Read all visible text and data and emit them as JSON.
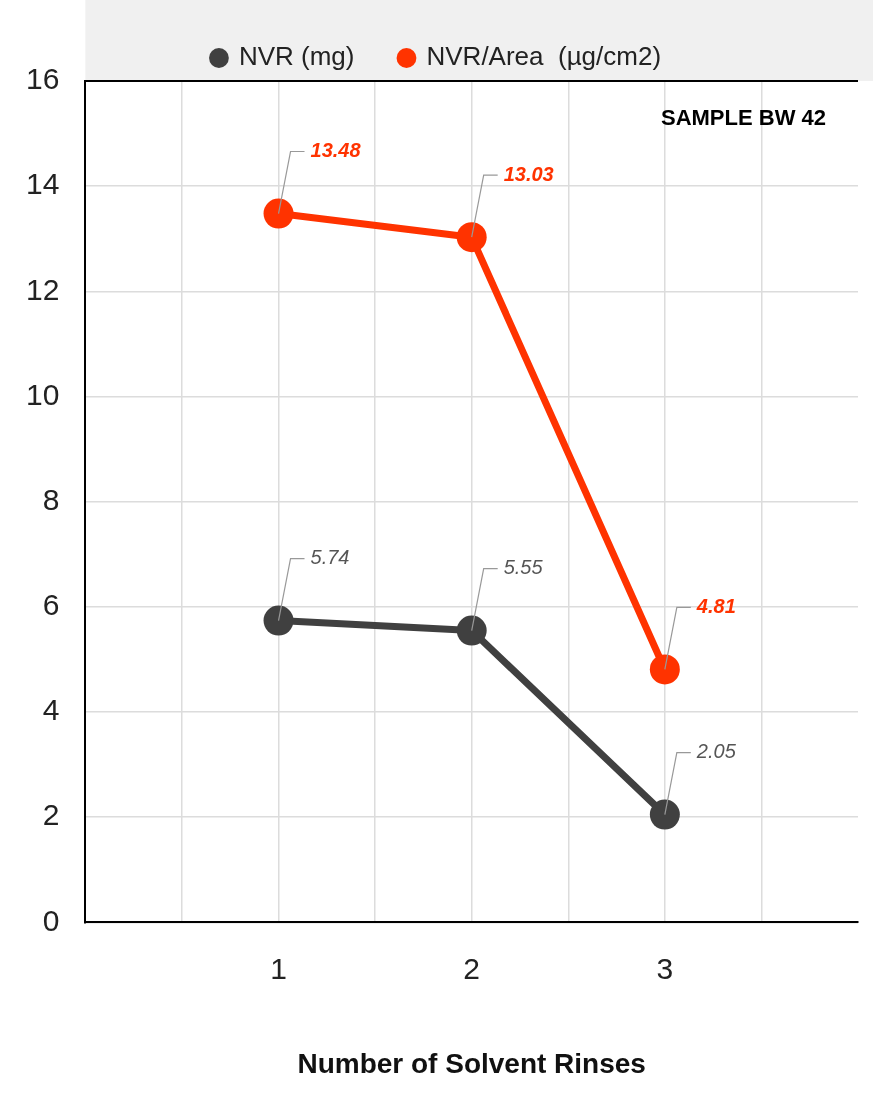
{
  "chart_data": {
    "type": "line",
    "xlabel": "Number of Solvent Rinses",
    "x": [
      1,
      2,
      3
    ],
    "series": [
      {
        "name": "NVR (mg)",
        "color": "#404040",
        "values": [
          5.74,
          5.55,
          2.05
        ]
      },
      {
        "name": "NVR/Area  (µg/cm2)",
        "color": "#ff3300",
        "values": [
          13.48,
          13.03,
          4.81
        ]
      }
    ],
    "xlim": [
      0,
      4
    ],
    "xticks": [
      {
        "value": 0.5,
        "label": null
      },
      1,
      {
        "value": 1.5,
        "label": null
      },
      2,
      {
        "value": 2.5,
        "label": null
      },
      3,
      {
        "value": 3.5,
        "label": null
      }
    ],
    "ylim": [
      0,
      16
    ],
    "yticks": [
      0,
      2,
      4,
      6,
      8,
      10,
      12,
      14,
      16
    ],
    "grid": true,
    "legend": "top",
    "marker": "circle",
    "line_style": "solid",
    "data_labels": true,
    "annotations": [
      "SAMPLE BW 42"
    ]
  }
}
